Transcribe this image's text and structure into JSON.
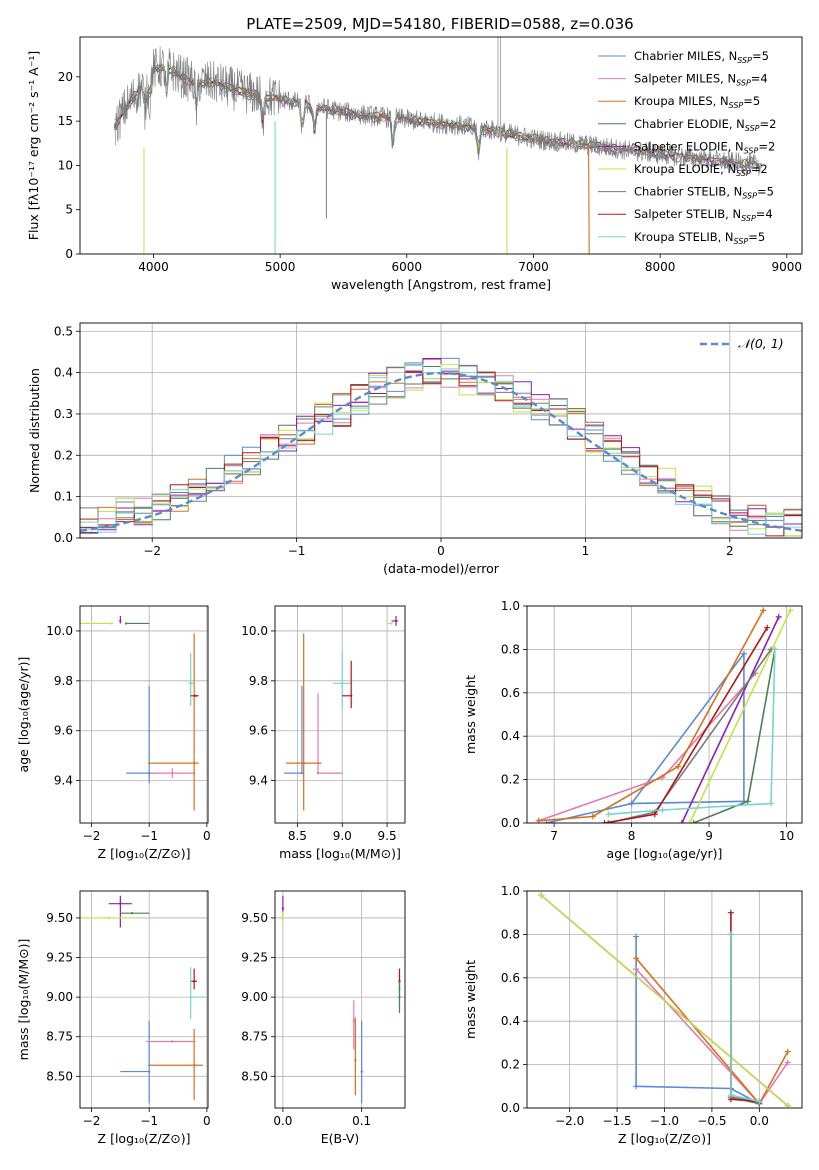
{
  "title": "PLATE=2509, MJD=54180, FIBERID=0588, z=0.036",
  "colors": {
    "Chabrier MILES": "#5b8bd5",
    "Salpeter MILES": "#e07bb0",
    "Kroupa MILES": "#d9701f",
    "Chabrier ELODIE": "#4f7f55",
    "Salpeter ELODIE": "#8a1fb0",
    "Kroupa ELODIE": "#c8e14a",
    "Chabrier STELIB": "#7a7a7a",
    "Salpeter STELIB": "#b01818",
    "Kroupa STELIB": "#79d3d3"
  },
  "chart_data": [
    {
      "id": "spectrum",
      "type": "line",
      "xlabel": "wavelength [Angstrom, rest frame]",
      "ylabel": "Flux [fλ10⁻¹⁷ erg cm⁻² s⁻¹ A⁻¹]",
      "xlim": [
        3420,
        9120
      ],
      "ylim": [
        0,
        24.5
      ],
      "xticks": [
        4000,
        5000,
        6000,
        7000,
        8000,
        9000
      ],
      "yticks": [
        0,
        5,
        10,
        15,
        20
      ],
      "grid": false,
      "legend_position": "upper right",
      "continuum": {
        "x": [
          3700,
          3800,
          3900,
          4000,
          4100,
          4200,
          4300,
          4500,
          4700,
          5000,
          5300,
          5600,
          6000,
          6300,
          6600,
          7000,
          7300,
          7500,
          7800,
          8000,
          8300,
          8600,
          8800
        ],
        "y": [
          14.5,
          17.0,
          18.8,
          20.8,
          21.3,
          20.2,
          19.5,
          19.3,
          18.3,
          17.5,
          16.6,
          15.8,
          15.2,
          14.7,
          14.2,
          13.0,
          12.5,
          12.2,
          11.6,
          11.3,
          10.8,
          10.3,
          10.0
        ]
      },
      "series": [
        {
          "name": "Chabrier MILES, Nₛₛₚ=5",
          "label_main": "Chabrier MILES, N",
          "label_sub": "SSP",
          "label_end": "=5"
        },
        {
          "name": "Salpeter MILES, Nₛₛₚ=4",
          "label_main": "Salpeter MILES, N",
          "label_sub": "SSP",
          "label_end": "=4"
        },
        {
          "name": "Kroupa MILES, Nₛₛₚ=5",
          "label_main": "Kroupa MILES, N",
          "label_sub": "SSP",
          "label_end": "=5"
        },
        {
          "name": "Chabrier ELODIE, Nₛₛₚ=2",
          "label_main": "Chabrier ELODIE, N",
          "label_sub": "SSP",
          "label_end": "=2"
        },
        {
          "name": "Salpeter ELODIE, Nₛₛₚ=2",
          "label_main": "Salpeter ELODIE, N",
          "label_sub": "SSP",
          "label_end": "=2"
        },
        {
          "name": "Kroupa ELODIE, Nₛₛₚ=2",
          "label_main": "Kroupa ELODIE, N",
          "label_sub": "SSP",
          "label_end": "=2"
        },
        {
          "name": "Chabrier STELIB, Nₛₛₚ=5",
          "label_main": "Chabrier STELIB, N",
          "label_sub": "SSP",
          "label_end": "=5"
        },
        {
          "name": "Salpeter STELIB, Nₛₛₚ=4",
          "label_main": "Salpeter STELIB, N",
          "label_sub": "SSP",
          "label_end": "=4"
        },
        {
          "name": "Kroupa STELIB, Nₛₛₚ=5",
          "label_main": "Kroupa STELIB, N",
          "label_sub": "SSP",
          "label_end": "=5"
        }
      ]
    },
    {
      "id": "residuals",
      "type": "histogram",
      "xlabel": "(data-model)/error",
      "ylabel": "Normed distribution",
      "xlim": [
        -2.5,
        2.5
      ],
      "ylim": [
        0,
        0.52
      ],
      "xticks": [
        -2,
        -1,
        0,
        1,
        2
      ],
      "yticks": [
        0.0,
        0.1,
        0.2,
        0.3,
        0.4,
        0.5
      ],
      "grid": true,
      "legend_position": "upper right",
      "legend_label": "𝒩(0, 1)",
      "reference_curve": "normal(0,1)",
      "bin_edges_range": [
        -2.5,
        2.5
      ],
      "bins": 40,
      "base_values": [
        0.035,
        0.045,
        0.06,
        0.07,
        0.08,
        0.095,
        0.11,
        0.13,
        0.16,
        0.19,
        0.215,
        0.24,
        0.265,
        0.29,
        0.31,
        0.335,
        0.36,
        0.375,
        0.39,
        0.4,
        0.395,
        0.385,
        0.37,
        0.36,
        0.34,
        0.32,
        0.3,
        0.275,
        0.245,
        0.215,
        0.19,
        0.16,
        0.135,
        0.11,
        0.09,
        0.07,
        0.055,
        0.045,
        0.035,
        0.03
      ]
    },
    {
      "id": "age_vs_Z",
      "type": "errorbar",
      "xlabel": "Z [log₁₀(Z/Z⊙)]",
      "ylabel": "age  [log₁₀(age/yr)]",
      "xlim": [
        -2.2,
        0.02
      ],
      "ylim": [
        9.23,
        10.1
      ],
      "xticks": [
        -2,
        -1,
        0
      ],
      "yticks": [
        9.4,
        9.6,
        9.8,
        10.0
      ],
      "grid": true,
      "points": [
        {
          "series": "Chabrier MILES",
          "x": -1.0,
          "y": 9.43,
          "xerr": [
            0.4,
            0.1
          ],
          "yerr": [
            0.04,
            0.35
          ]
        },
        {
          "series": "Salpeter MILES",
          "x": -0.6,
          "y": 9.43,
          "xerr": [
            0.38,
            0.4
          ],
          "yerr": [
            0.02,
            0.02
          ]
        },
        {
          "series": "Kroupa MILES",
          "x": -0.22,
          "y": 9.47,
          "xerr": [
            0.8,
            0.08
          ],
          "yerr": [
            0.19,
            0.52
          ]
        },
        {
          "series": "Kroupa STELIB",
          "x": -0.28,
          "y": 9.79,
          "xerr": [
            0.04,
            0.06
          ],
          "yerr": [
            0.09,
            0.12
          ]
        },
        {
          "series": "Salpeter STELIB",
          "x": -0.2,
          "y": 9.74,
          "xerr": [
            0.08,
            0.06
          ],
          "yerr": [
            0.0,
            0.0
          ]
        },
        {
          "series": "Kroupa ELODIE",
          "x": -1.65,
          "y": 10.03,
          "xerr": [
            0.55,
            0.0
          ],
          "yerr": [
            0.0,
            0.0
          ]
        },
        {
          "series": "Chabrier ELODIE",
          "x": -1.4,
          "y": 10.03,
          "xerr": [
            0.0,
            0.4
          ],
          "yerr": [
            0.0,
            0.0
          ]
        },
        {
          "series": "Salpeter ELODIE",
          "x": -1.5,
          "y": 10.04,
          "xerr": [
            0.0,
            0.0
          ],
          "yerr": [
            0.01,
            0.02
          ]
        }
      ]
    },
    {
      "id": "age_vs_mass",
      "type": "errorbar",
      "xlabel": "mass [log₁₀(M/M⊙)]",
      "ylabel": "",
      "xlim": [
        8.25,
        9.7
      ],
      "ylim": [
        9.23,
        10.1
      ],
      "xticks": [
        8.5,
        9.0,
        9.5
      ],
      "yticks": [
        9.4,
        9.6,
        9.8,
        10.0
      ],
      "grid": true,
      "points": [
        {
          "series": "Chabrier MILES",
          "x": 8.55,
          "y": 9.43,
          "xerr": [
            0.2,
            0.0
          ],
          "yerr": [
            0.0,
            0.35
          ]
        },
        {
          "series": "Salpeter MILES",
          "x": 8.73,
          "y": 9.43,
          "xerr": [
            0.0,
            0.27
          ],
          "yerr": [
            0.0,
            0.32
          ]
        },
        {
          "series": "Kroupa MILES",
          "x": 8.57,
          "y": 9.47,
          "xerr": [
            0.2,
            0.2
          ],
          "yerr": [
            0.19,
            0.52
          ]
        },
        {
          "series": "Kroupa STELIB",
          "x": 9.0,
          "y": 9.79,
          "xerr": [
            0.1,
            0.1
          ],
          "yerr": [
            0.1,
            0.13
          ]
        },
        {
          "series": "Salpeter STELIB",
          "x": 9.1,
          "y": 9.74,
          "xerr": [
            0.1,
            0.0
          ],
          "yerr": [
            0.05,
            0.14
          ]
        },
        {
          "series": "Salpeter ELODIE",
          "x": 9.6,
          "y": 10.04,
          "xerr": [
            0.05,
            0.02
          ],
          "yerr": [
            0.02,
            0.02
          ]
        },
        {
          "series": "Kroupa ELODIE",
          "x": 9.55,
          "y": 10.03,
          "xerr": [
            0.05,
            0.0
          ],
          "yerr": [
            0.0,
            0.0
          ]
        }
      ]
    },
    {
      "id": "massweight_vs_age",
      "type": "line",
      "xlabel": "age  [log₁₀(age/yr)]",
      "ylabel": "mass weight",
      "xlim": [
        6.65,
        10.2
      ],
      "ylim": [
        0,
        1.0
      ],
      "xticks": [
        7,
        8,
        9,
        10
      ],
      "yticks": [
        0.0,
        0.2,
        0.4,
        0.6,
        0.8,
        1.0
      ],
      "grid": true,
      "series": [
        {
          "key": "Chabrier MILES",
          "x": [
            6.9,
            8.0,
            9.45,
            9.45,
            8.0
          ],
          "y": [
            0.0,
            0.09,
            0.78,
            0.1,
            0.09
          ]
        },
        {
          "key": "Salpeter MILES",
          "x": [
            6.8,
            8.4,
            9.6
          ],
          "y": [
            0.01,
            0.21,
            0.69
          ]
        },
        {
          "key": "Kroupa MILES",
          "x": [
            6.8,
            7.5,
            8.6,
            9.7
          ],
          "y": [
            0.01,
            0.03,
            0.26,
            0.98
          ]
        },
        {
          "key": "Chabrier ELODIE",
          "x": [
            8.8,
            9.5,
            9.85
          ],
          "y": [
            0.0,
            0.1,
            0.8
          ]
        },
        {
          "key": "Salpeter ELODIE",
          "x": [
            8.65,
            9.9
          ],
          "y": [
            0.0,
            0.95
          ]
        },
        {
          "key": "Kroupa ELODIE",
          "x": [
            8.75,
            10.05
          ],
          "y": [
            0.0,
            0.98
          ]
        },
        {
          "key": "Chabrier STELIB",
          "x": [
            7.7,
            8.3,
            9.8
          ],
          "y": [
            0.0,
            0.05,
            0.8
          ]
        },
        {
          "key": "Salpeter STELIB",
          "x": [
            7.65,
            8.3,
            9.75
          ],
          "y": [
            0.0,
            0.04,
            0.9
          ]
        },
        {
          "key": "Kroupa STELIB",
          "x": [
            7.7,
            8.4,
            9.8,
            9.85
          ],
          "y": [
            0.04,
            0.06,
            0.09,
            0.8
          ]
        }
      ]
    },
    {
      "id": "mass_vs_Z",
      "type": "errorbar",
      "xlabel": "Z [log₁₀(Z/Z⊙)]",
      "ylabel": "mass [log₁₀(M/M⊙)]",
      "xlim": [
        -2.2,
        0.02
      ],
      "ylim": [
        8.3,
        9.67
      ],
      "xticks": [
        -2,
        -1,
        0
      ],
      "yticks": [
        8.5,
        8.75,
        9.0,
        9.25,
        9.5
      ],
      "grid": true,
      "points": [
        {
          "series": "Chabrier MILES",
          "x": -1.0,
          "y": 8.53,
          "xerr": [
            0.5,
            0.0
          ],
          "yerr": [
            0.2,
            0.32
          ]
        },
        {
          "series": "Salpeter MILES",
          "x": -0.6,
          "y": 8.72,
          "xerr": [
            0.45,
            0.4
          ],
          "yerr": [
            0.0,
            0.0
          ]
        },
        {
          "series": "Kroupa MILES",
          "x": -0.22,
          "y": 8.57,
          "xerr": [
            0.8,
            0.15
          ],
          "yerr": [
            0.22,
            0.23
          ]
        },
        {
          "series": "Kroupa STELIB",
          "x": -0.28,
          "y": 9.0,
          "xerr": [
            0.0,
            0.25
          ],
          "yerr": [
            0.14,
            0.19
          ]
        },
        {
          "series": "Salpeter STELIB",
          "x": -0.22,
          "y": 9.1,
          "xerr": [
            0.05,
            0.05
          ],
          "yerr": [
            0.05,
            0.08
          ]
        },
        {
          "series": "Salpeter ELODIE",
          "x": -1.5,
          "y": 9.59,
          "xerr": [
            0.2,
            0.2
          ],
          "yerr": [
            0.15,
            0.05
          ]
        },
        {
          "series": "Chabrier ELODIE",
          "x": -1.3,
          "y": 9.53,
          "xerr": [
            0.2,
            0.3
          ],
          "yerr": [
            0.0,
            0.0
          ]
        },
        {
          "series": "Kroupa ELODIE",
          "x": -1.7,
          "y": 9.5,
          "xerr": [
            0.5,
            0.45
          ],
          "yerr": [
            0.0,
            0.0
          ]
        }
      ]
    },
    {
      "id": "mass_vs_EBV",
      "type": "errorbar",
      "xlabel": "E(B-V)",
      "ylabel": "",
      "xlim": [
        -0.01,
        0.155
      ],
      "ylim": [
        8.3,
        9.67
      ],
      "xticks": [
        0.0,
        0.1
      ],
      "yticks": [
        8.5,
        8.75,
        9.0,
        9.25,
        9.5
      ],
      "grid": true,
      "points": [
        {
          "series": "Chabrier MILES",
          "x": 0.1,
          "y": 8.53,
          "xerr": [
            0,
            0
          ],
          "yerr": [
            0.2,
            0.32
          ]
        },
        {
          "series": "Salpeter MILES",
          "x": 0.09,
          "y": 8.85,
          "xerr": [
            0,
            0
          ],
          "yerr": [
            0.18,
            0.13
          ]
        },
        {
          "series": "Kroupa MILES",
          "x": 0.092,
          "y": 8.6,
          "xerr": [
            0,
            0
          ],
          "yerr": [
            0.22,
            0.27
          ]
        },
        {
          "series": "Kroupa STELIB",
          "x": 0.148,
          "y": 9.05,
          "xerr": [
            0,
            0
          ],
          "yerr": [
            0.12,
            0.12
          ]
        },
        {
          "series": "Salpeter STELIB",
          "x": 0.148,
          "y": 9.1,
          "xerr": [
            0,
            0
          ],
          "yerr": [
            0.05,
            0.08
          ]
        },
        {
          "series": "Chabrier ELODIE",
          "x": 0.148,
          "y": 9.0,
          "xerr": [
            0,
            0
          ],
          "yerr": [
            0.1,
            0.1
          ]
        },
        {
          "series": "Salpeter ELODIE",
          "x": 0.0,
          "y": 9.56,
          "xerr": [
            0,
            0
          ],
          "yerr": [
            0.08,
            0.08
          ]
        },
        {
          "series": "Kroupa ELODIE",
          "x": 0.0,
          "y": 9.5,
          "xerr": [
            0,
            0
          ],
          "yerr": [
            0.04,
            0.04
          ]
        }
      ]
    },
    {
      "id": "massweight_vs_Z",
      "type": "line",
      "xlabel": "Z [log₁₀(Z/Z⊙)]",
      "ylabel": "mass weight",
      "xlim": [
        -2.45,
        0.45
      ],
      "ylim": [
        0,
        1.0
      ],
      "xticks": [
        -2.0,
        -1.5,
        -1.0,
        -0.5,
        0.0
      ],
      "yticks": [
        0.0,
        0.2,
        0.4,
        0.6,
        0.8,
        1.0
      ],
      "grid": true,
      "series": [
        {
          "key": "Chabrier MILES",
          "x": [
            -1.3,
            -1.3,
            -0.3,
            0.0
          ],
          "y": [
            0.79,
            0.1,
            0.09,
            0.02
          ]
        },
        {
          "key": "Salpeter MILES",
          "x": [
            -1.3,
            0.0,
            0.3
          ],
          "y": [
            0.64,
            0.02,
            0.21
          ]
        },
        {
          "key": "Kroupa MILES",
          "x": [
            -1.3,
            0.0,
            0.3
          ],
          "y": [
            0.69,
            0.02,
            0.26
          ]
        },
        {
          "key": "Chabrier ELODIE",
          "x": [
            -0.3,
            -0.3,
            0.0
          ],
          "y": [
            0.8,
            0.05,
            0.02
          ]
        },
        {
          "key": "Salpeter ELODIE",
          "x": [
            -2.3,
            0.3
          ],
          "y": [
            0.98,
            0.01
          ]
        },
        {
          "key": "Kroupa ELODIE",
          "x": [
            -2.3,
            0.3
          ],
          "y": [
            0.98,
            0.01
          ]
        },
        {
          "key": "Chabrier STELIB",
          "x": [
            -0.3,
            0.0
          ],
          "y": [
            0.05,
            0.03
          ]
        },
        {
          "key": "Salpeter STELIB",
          "x": [
            -0.3,
            -0.3,
            0.0
          ],
          "y": [
            0.9,
            0.04,
            0.03
          ]
        },
        {
          "key": "Kroupa STELIB",
          "x": [
            -0.3,
            -0.3,
            0.0
          ],
          "y": [
            0.8,
            0.06,
            0.03
          ]
        }
      ]
    }
  ]
}
